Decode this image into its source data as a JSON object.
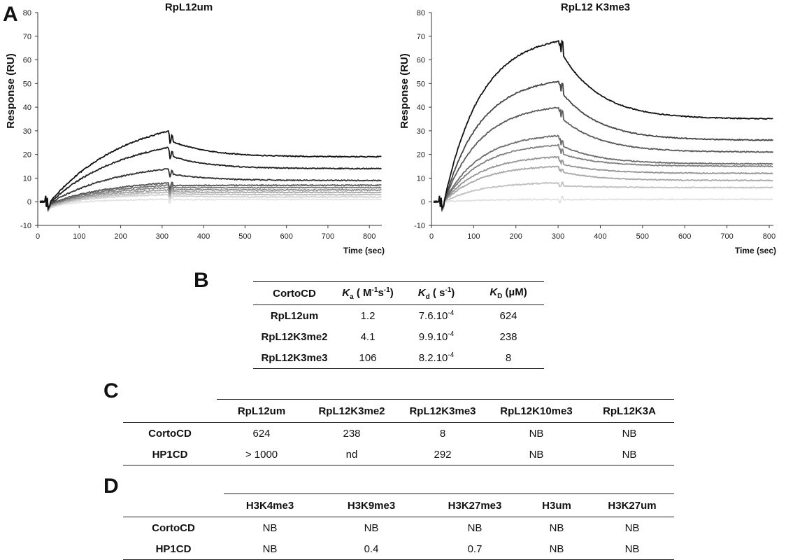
{
  "panels": {
    "a": "A",
    "b": "B",
    "c": "C",
    "d": "D"
  },
  "chart_data": [
    {
      "type": "line",
      "title": "RpL12um",
      "xlabel": "Time (sec)",
      "ylabel": "Response (RU)",
      "xlim": [
        0,
        830
      ],
      "ylim": [
        -10,
        80
      ],
      "xticks": [
        0,
        100,
        200,
        300,
        400,
        500,
        600,
        700,
        800
      ],
      "yticks": [
        -10,
        0,
        10,
        20,
        30,
        40,
        50,
        60,
        70,
        80
      ],
      "grid": false,
      "injection_end": 318,
      "series": [
        {
          "color": "#111111",
          "peak": 30,
          "final": 19
        },
        {
          "color": "#1f1f1f",
          "peak": 23,
          "final": 14
        },
        {
          "color": "#333333",
          "peak": 14,
          "final": 9
        },
        {
          "color": "#555555",
          "peak": 8,
          "final": 7
        },
        {
          "color": "#777777",
          "peak": 7,
          "final": 6
        },
        {
          "color": "#8c8c8c",
          "peak": 6,
          "final": 5
        },
        {
          "color": "#a5a5a5",
          "peak": 5,
          "final": 4
        },
        {
          "color": "#bdbdbd",
          "peak": 4,
          "final": 3
        },
        {
          "color": "#d2d2d2",
          "peak": 3,
          "final": 2
        },
        {
          "color": "#e2e2e2",
          "peak": 1,
          "final": 1
        }
      ]
    },
    {
      "type": "line",
      "title": "RpL12 K3me3",
      "xlabel": "Time (sec)",
      "ylabel": "Response (RU)",
      "xlim": [
        0,
        810
      ],
      "ylim": [
        -10,
        80
      ],
      "xticks": [
        0,
        100,
        200,
        300,
        400,
        500,
        600,
        700,
        800
      ],
      "yticks": [
        -10,
        0,
        10,
        20,
        30,
        40,
        50,
        60,
        70,
        80
      ],
      "grid": false,
      "injection_end": 305,
      "series": [
        {
          "color": "#111111",
          "peak": 68,
          "final": 35
        },
        {
          "color": "#444444",
          "peak": 51,
          "final": 26
        },
        {
          "color": "#5c5c5c",
          "peak": 40,
          "final": 21
        },
        {
          "color": "#6e6e6e",
          "peak": 28,
          "final": 16
        },
        {
          "color": "#808080",
          "peak": 24,
          "final": 15
        },
        {
          "color": "#959595",
          "peak": 19,
          "final": 12
        },
        {
          "color": "#a8a8a8",
          "peak": 15,
          "final": 9
        },
        {
          "color": "#c0c0c0",
          "peak": 8,
          "final": 6
        },
        {
          "color": "#e0e0e0",
          "peak": 1,
          "final": 1
        }
      ]
    }
  ],
  "table_b": {
    "headers": [
      "CortoCD",
      "K",
      "a",
      " ( M",
      "-1",
      "s",
      "-1",
      ")",
      "K",
      "d",
      " ( s",
      "-1",
      ")",
      "K",
      "D",
      " (µM)"
    ],
    "rows": [
      {
        "name": "RpL12um",
        "ka": "1.2",
        "kd": "7.6.10",
        "kd_exp": "-4",
        "KD": "624"
      },
      {
        "name": "RpL12K3me2",
        "ka": "4.1",
        "kd": "9.9.10",
        "kd_exp": "-4",
        "KD": "238"
      },
      {
        "name": "RpL12K3me3",
        "ka": "106",
        "kd": "8.2.10",
        "kd_exp": "-4",
        "KD": "8"
      }
    ]
  },
  "table_c": {
    "headers": [
      "",
      "RpL12um",
      "RpL12K3me2",
      "RpL12K3me3",
      "RpL12K10me3",
      "RpL12K3A"
    ],
    "rows": [
      [
        "CortoCD",
        "624",
        "238",
        "8",
        "NB",
        "NB"
      ],
      [
        "HP1CD",
        "> 1000",
        "nd",
        "292",
        "NB",
        "NB"
      ]
    ]
  },
  "table_d": {
    "headers": [
      "",
      "H3K4me3",
      "H3K9me3",
      "H3K27me3",
      "H3um",
      "H3K27um"
    ],
    "rows": [
      [
        "CortoCD",
        "NB",
        "NB",
        "NB",
        "NB",
        "NB"
      ],
      [
        "HP1CD",
        "NB",
        "0.4",
        "0.7",
        "NB",
        "NB"
      ]
    ]
  }
}
